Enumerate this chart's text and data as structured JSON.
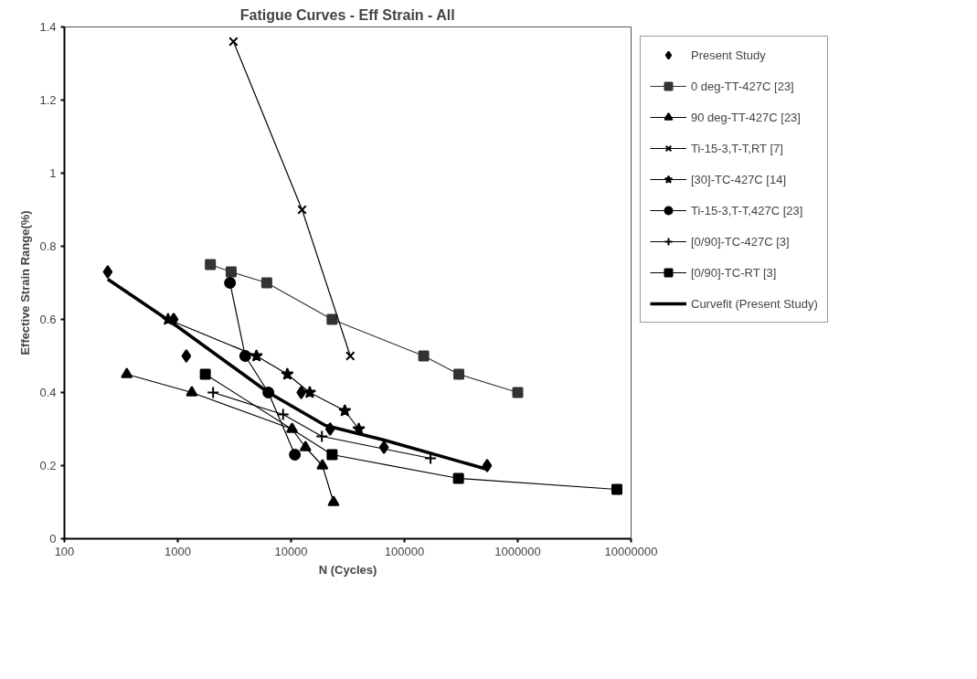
{
  "chart_data": {
    "type": "line",
    "title": "Fatigue Curves - Eff Strain - All",
    "xlabel": "N (Cycles)",
    "ylabel": "Effective Strain Range(%)",
    "log": "x",
    "xlim": [
      100,
      10000000
    ],
    "xticks": [
      100,
      1000,
      10000,
      100000,
      1000000,
      10000000
    ],
    "ylim": [
      0,
      1.4
    ],
    "yticks": [
      0,
      0.2,
      0.4,
      0.6,
      0.8,
      1,
      1.2,
      1.4
    ],
    "grid": false,
    "legend": "right",
    "series": [
      {
        "name": "Present Study",
        "type": "scatter",
        "marker": "diamond",
        "color": "#000000",
        "x": [
          241,
          920,
          1190,
          12300,
          22100,
          66000,
          537000
        ],
        "values": [
          0.73,
          0.6,
          0.5,
          0.4,
          0.3,
          0.25,
          0.2
        ]
      },
      {
        "name": "0 deg-TT-427C [23]",
        "marker": "square",
        "color": "#333333",
        "x": [
          1940,
          2960,
          6100,
          23000,
          148000,
          302000,
          1000000
        ],
        "values": [
          0.75,
          0.73,
          0.7,
          0.6,
          0.5,
          0.45,
          0.4
        ]
      },
      {
        "name": "90 deg-TT-427C [23]",
        "marker": "triangle",
        "color": "#000000",
        "x": [
          355,
          1330,
          10200,
          13400,
          18900,
          23700
        ],
        "values": [
          0.45,
          0.4,
          0.3,
          0.25,
          0.2,
          0.1
        ]
      },
      {
        "name": "Ti-15-3,T-T,RT [7]",
        "marker": "x",
        "color": "#000000",
        "x": [
          3100,
          12500,
          33300
        ],
        "values": [
          1.36,
          0.9,
          0.5
        ]
      },
      {
        "name": "[30]-TC-427C [14]",
        "marker": "star",
        "color": "#000000",
        "x": [
          820,
          4950,
          9270,
          14600,
          29800,
          39600
        ],
        "values": [
          0.6,
          0.5,
          0.45,
          0.4,
          0.35,
          0.3
        ]
      },
      {
        "name": "Ti-15-3,T-T,427C [23]",
        "marker": "circle",
        "color": "#000000",
        "x": [
          2890,
          3940,
          6300,
          10800
        ],
        "values": [
          0.7,
          0.5,
          0.4,
          0.23
        ]
      },
      {
        "name": "[0/90]-TC-427C [3]",
        "marker": "cross",
        "color": "#000000",
        "x": [
          2050,
          8500,
          18700,
          170000
        ],
        "values": [
          0.4,
          0.34,
          0.28,
          0.22
        ]
      },
      {
        "name": "[0/90]-TC-RT [3]",
        "marker": "square",
        "color": "#000000",
        "x": [
          1750,
          23000,
          300000,
          7500000
        ],
        "values": [
          0.45,
          0.23,
          0.165,
          0.135
        ]
      },
      {
        "name": "Curvefit (Present Study)",
        "marker": "none",
        "color": "#000000",
        "x": [
          241,
          900,
          6300,
          20000,
          66000,
          537000
        ],
        "values": [
          0.71,
          0.59,
          0.4,
          0.31,
          0.27,
          0.19
        ]
      }
    ]
  }
}
